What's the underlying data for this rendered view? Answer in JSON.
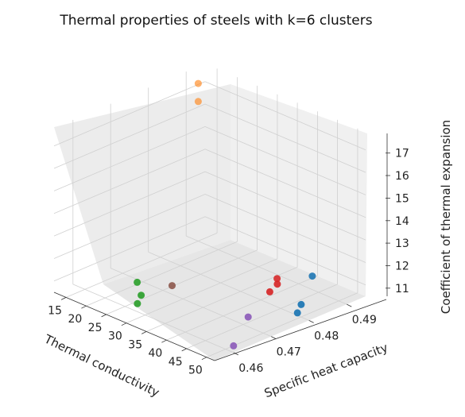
{
  "chart_data": {
    "type": "scatter",
    "projection": "3d",
    "title": "Thermal properties of steels with k=6 clusters",
    "xlabel": "Thermal conductivity",
    "ylabel": "Specific heat capacity",
    "zlabel": "Coefficient of thermal expansion",
    "xlim": [
      12,
      52
    ],
    "ylim": [
      0.455,
      0.495
    ],
    "zlim": [
      10.5,
      17.8
    ],
    "xticks": [
      "15",
      "20",
      "25",
      "30",
      "35",
      "40",
      "45",
      "50"
    ],
    "yticks": [
      "0.46",
      "0.47",
      "0.48",
      "0.49"
    ],
    "zticks": [
      "11",
      "12",
      "13",
      "14",
      "15",
      "16",
      "17"
    ],
    "grid": true,
    "series": [
      {
        "color": "#1f77b4",
        "points": [
          {
            "x": 50,
            "y": 0.483,
            "z": 12.1
          },
          {
            "x": 51,
            "y": 0.479,
            "z": 11.2
          },
          {
            "x": 51,
            "y": 0.478,
            "z": 10.9
          }
        ]
      },
      {
        "color": "#ff7f0e",
        "points": [
          {
            "x": 15,
            "y": 0.49,
            "z": 17.5
          },
          {
            "x": 15,
            "y": 0.49,
            "z": 16.7
          }
        ]
      },
      {
        "color": "#2ca02c",
        "points": [
          {
            "x": 28,
            "y": 0.46,
            "z": 11.8
          },
          {
            "x": 29,
            "y": 0.46,
            "z": 11.3
          },
          {
            "x": 29,
            "y": 0.459,
            "z": 11.0
          }
        ]
      },
      {
        "color": "#d62728",
        "points": [
          {
            "x": 45,
            "y": 0.479,
            "z": 11.9
          },
          {
            "x": 46,
            "y": 0.478,
            "z": 11.8
          },
          {
            "x": 46,
            "y": 0.476,
            "z": 11.6
          }
        ]
      },
      {
        "color": "#9467bd",
        "points": [
          {
            "x": 50,
            "y": 0.466,
            "z": 11.5
          },
          {
            "x": 52,
            "y": 0.46,
            "z": 10.8
          }
        ]
      },
      {
        "color": "#8c564b",
        "points": [
          {
            "x": 32,
            "y": 0.465,
            "z": 11.6
          }
        ]
      }
    ]
  }
}
